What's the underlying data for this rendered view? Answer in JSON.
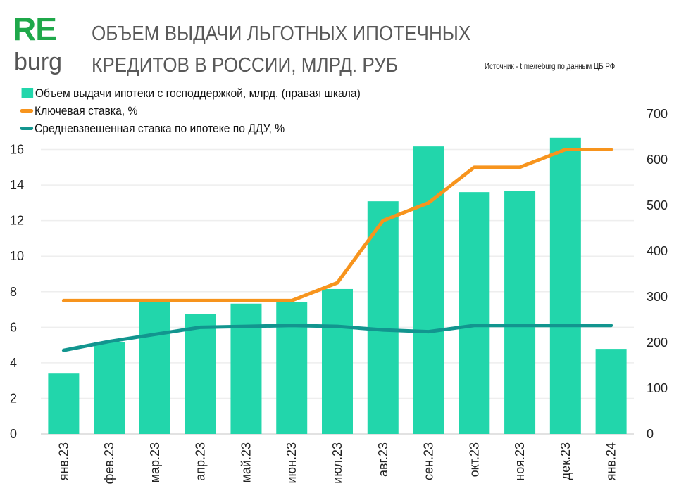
{
  "logo": {
    "top": "RE",
    "bottom": "burg"
  },
  "title_lines": [
    "ОБЪЕМ ВЫДАЧИ ЛЬГОТНЫХ ИПОТЕЧНЫХ",
    "КРЕДИТОВ В РОССИИ, МЛРД. РУБ"
  ],
  "source": "Источник  - t.me/reburg по данным  ЦБ РФ",
  "chart_data": {
    "type": "bar+line",
    "title": "ОБЪЕМ ВЫДАЧИ ЛЬГОТНЫХ ИПОТЕЧНЫХ КРЕДИТОВ В РОССИИ, МЛРД. РУБ",
    "categories": [
      "янв.23",
      "фев.23",
      "мар.23",
      "апр.23",
      "май.23",
      "июн.23",
      "июл.23",
      "авг.23",
      "сен.23",
      "окт.23",
      "ноя.23",
      "дек.23",
      "янв.24"
    ],
    "left_axis": {
      "range": [
        0,
        18
      ],
      "ticks": [
        "0",
        "2",
        "4",
        "6",
        "8",
        "10",
        "12",
        "14",
        "16"
      ]
    },
    "right_axis": {
      "range": [
        0,
        700
      ],
      "ticks": [
        "0",
        "100",
        "200",
        "300",
        "400",
        "500",
        "600",
        "700"
      ]
    },
    "grid": true,
    "legend_position": "top-left",
    "series": [
      {
        "name": "Объем выдачи ипотеки с господдержкой, млрд. (правая шкала)",
        "type": "bar",
        "axis": "right",
        "color": "#22d6ab",
        "values": [
          132,
          201,
          288,
          262,
          285,
          288,
          317,
          509,
          629,
          529,
          532,
          648,
          186
        ]
      },
      {
        "name": "Ключевая ставка, %",
        "type": "line",
        "axis": "left",
        "color": "#f7941d",
        "values": [
          7.5,
          7.5,
          7.5,
          7.5,
          7.5,
          7.5,
          8.5,
          12,
          13,
          15,
          15,
          16,
          16
        ]
      },
      {
        "name": "Средневзвешенная ставка по ипотеке по ДДУ, %",
        "type": "line",
        "axis": "left",
        "color": "#12958f",
        "values": [
          4.7,
          5.2,
          5.6,
          6.0,
          6.05,
          6.1,
          6.05,
          5.85,
          5.75,
          6.1,
          6.1,
          6.1,
          6.1
        ]
      }
    ]
  }
}
